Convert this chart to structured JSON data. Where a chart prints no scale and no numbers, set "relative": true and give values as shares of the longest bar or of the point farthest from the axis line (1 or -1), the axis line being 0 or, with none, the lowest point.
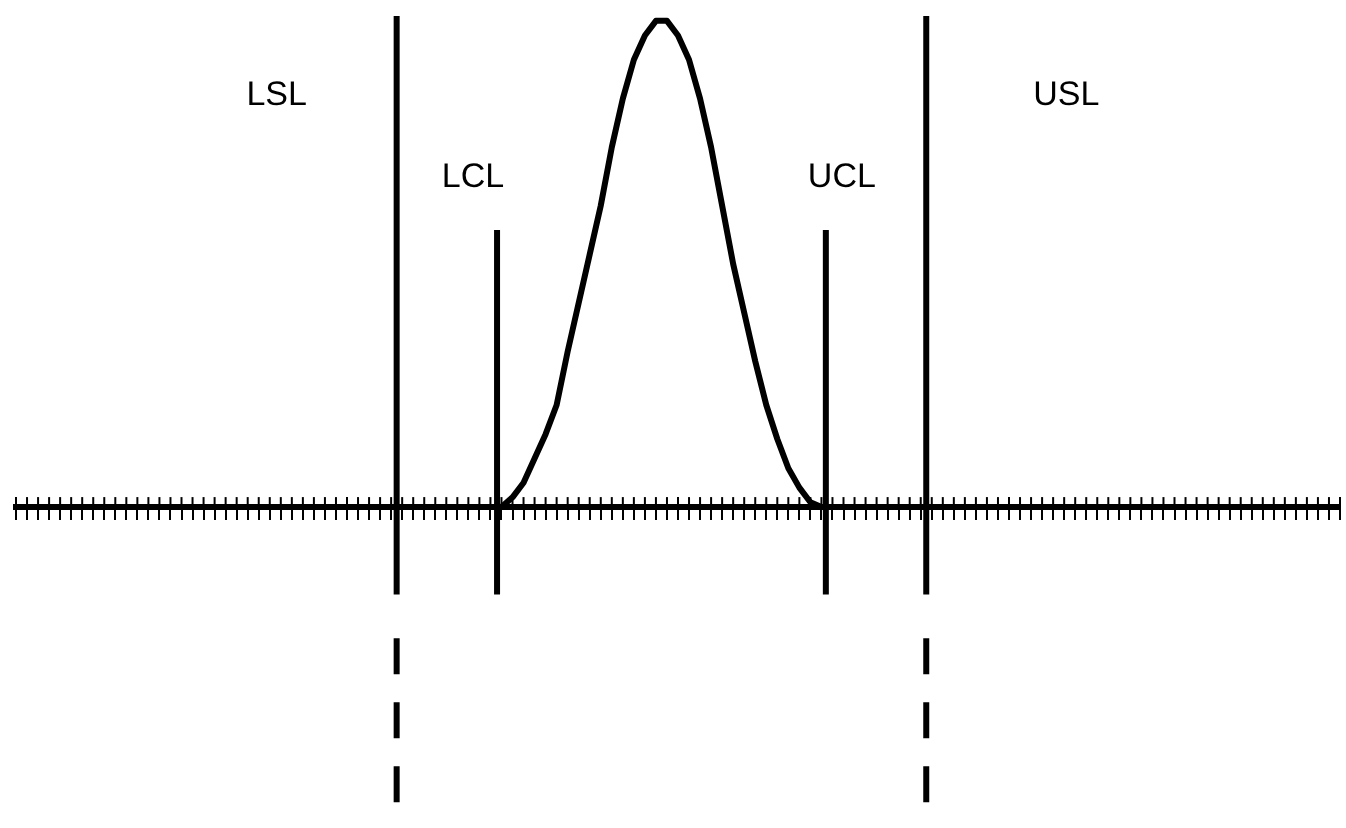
{
  "chart_data": {
    "type": "line",
    "relative": true,
    "line_style": "solid",
    "grid": false,
    "categories": [
      null,
      null,
      null,
      null,
      null,
      null,
      null,
      null,
      null,
      null,
      null,
      null,
      null,
      null,
      null,
      null,
      null,
      null,
      null,
      null,
      null,
      null,
      null,
      null,
      null,
      null,
      null,
      null,
      null,
      null,
      null,
      null,
      null,
      null,
      null,
      null,
      null,
      null,
      null,
      null,
      null,
      null,
      null,
      null,
      null,
      null,
      null,
      null,
      null,
      null,
      null,
      null,
      null,
      null,
      null,
      null,
      null,
      null,
      null,
      null,
      null,
      null,
      null,
      null,
      null,
      null,
      null,
      null,
      null,
      null,
      null,
      null,
      null,
      null,
      null,
      null,
      null,
      null,
      null,
      null,
      null,
      null,
      null,
      null,
      null,
      null,
      null,
      null,
      null,
      null,
      null,
      null,
      null,
      null,
      null,
      null,
      null,
      null,
      null,
      null,
      null,
      null,
      null,
      null,
      null,
      null,
      null,
      null,
      null,
      null,
      null,
      null,
      null,
      null,
      null,
      null,
      null,
      null,
      null,
      null,
      null
    ],
    "series": [
      {
        "color": "#000000",
        "values": [
          null,
          null,
          null,
          null,
          null,
          null,
          null,
          null,
          null,
          null,
          null,
          null,
          null,
          null,
          null,
          null,
          null,
          null,
          null,
          null,
          null,
          null,
          null,
          null,
          null,
          null,
          null,
          null,
          null,
          null,
          null,
          null,
          null,
          null,
          null,
          null,
          null,
          null,
          null,
          null,
          null,
          null,
          null,
          null,
          0,
          0.02,
          0.05,
          0.1,
          0.15,
          0.21,
          0.32,
          0.42,
          0.52,
          0.62,
          0.74,
          0.84,
          0.92,
          0.97,
          1,
          1,
          0.97,
          0.92,
          0.84,
          0.74,
          0.62,
          0.5,
          0.4,
          0.3,
          0.21,
          0.14,
          0.08,
          0.04,
          0.01,
          0,
          null,
          null,
          null,
          null,
          null,
          null,
          null,
          null,
          null,
          null,
          null,
          null,
          null,
          null,
          null,
          null,
          null,
          null,
          null,
          null,
          null,
          null,
          null,
          null,
          null,
          null,
          null,
          null,
          null,
          null,
          null,
          null,
          null,
          null,
          null,
          null,
          null,
          null,
          null,
          null,
          null,
          null,
          null,
          null,
          null,
          null,
          null
        ]
      }
    ],
    "annotations": [
      "LSL",
      "LCL",
      "UCL",
      "USL"
    ]
  }
}
